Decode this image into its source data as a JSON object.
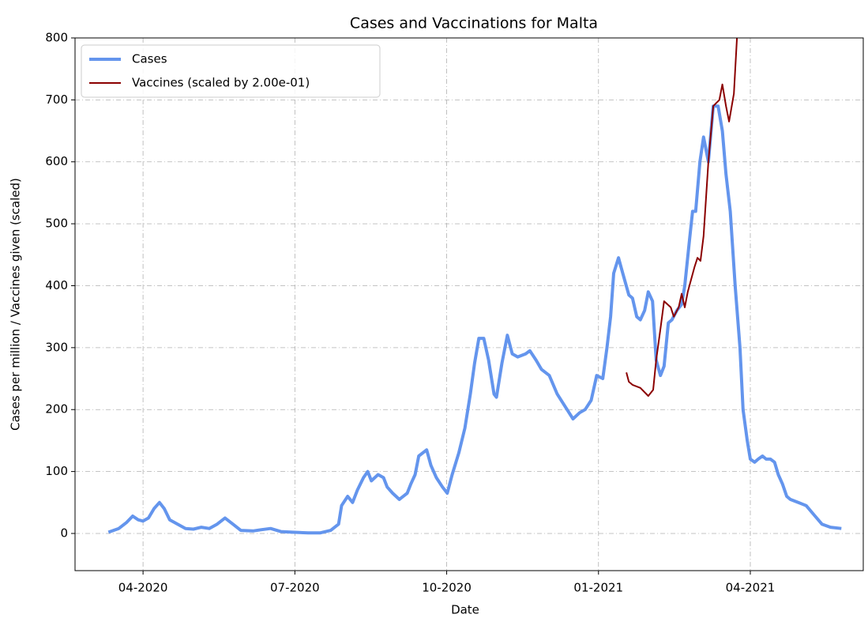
{
  "chart_data": {
    "type": "line",
    "title": "Cases and Vaccinations for Malta",
    "xlabel": "Date",
    "ylabel": "Cases per million / Vaccines given (scaled)",
    "xlim": [
      2020.138,
      2021.436
    ],
    "ylim": [
      -60,
      800
    ],
    "xticks": [
      {
        "value": 2020.25,
        "label": "04-2020"
      },
      {
        "value": 2020.5,
        "label": "07-2020"
      },
      {
        "value": 2020.75,
        "label": "10-2020"
      },
      {
        "value": 2021.0,
        "label": "01-2021"
      },
      {
        "value": 2021.25,
        "label": "04-2021"
      }
    ],
    "yticks": [
      0,
      100,
      200,
      300,
      400,
      500,
      600,
      700,
      800
    ],
    "grid": true,
    "legend": "upper left",
    "series": [
      {
        "name": "Cases",
        "color": "#6495ed",
        "width": 4,
        "x": [
          2020.193,
          2020.21,
          2020.223,
          2020.233,
          2020.242,
          2020.25,
          2020.259,
          2020.268,
          2020.277,
          2020.285,
          2020.294,
          2020.307,
          2020.32,
          2020.333,
          2020.346,
          2020.359,
          2020.372,
          2020.385,
          2020.398,
          2020.411,
          2020.431,
          2020.444,
          2020.46,
          2020.477,
          2020.496,
          2020.522,
          2020.542,
          2020.559,
          2020.572,
          2020.577,
          2020.587,
          2020.595,
          2020.603,
          2020.613,
          2020.62,
          2020.626,
          2020.637,
          2020.646,
          2020.652,
          2020.661,
          2020.672,
          2020.685,
          2020.691,
          2020.698,
          2020.704,
          2020.717,
          2020.724,
          2020.733,
          2020.743,
          2020.751,
          2020.759,
          2020.77,
          2020.78,
          2020.789,
          2020.796,
          2020.803,
          2020.811,
          2020.819,
          2020.828,
          2020.832,
          2020.841,
          2020.85,
          2020.858,
          2020.867,
          2020.88,
          2020.887,
          2020.897,
          2020.906,
          2020.919,
          2020.932,
          2020.945,
          2020.958,
          2020.969,
          2020.978,
          2020.988,
          2020.997,
          2021.007,
          2021.014,
          2021.02,
          2021.025,
          2021.033,
          2021.04,
          2021.05,
          2021.056,
          2021.063,
          2021.069,
          2021.076,
          2021.082,
          2021.089,
          2021.095,
          2021.102,
          2021.108,
          2021.115,
          2021.121,
          2021.129,
          2021.137,
          2021.142,
          2021.15,
          2021.155,
          2021.16,
          2021.167,
          2021.173,
          2021.181,
          2021.189,
          2021.197,
          2021.204,
          2021.21,
          2021.217,
          2021.225,
          2021.233,
          2021.238,
          2021.245,
          2021.25,
          2021.257,
          2021.263,
          2021.27,
          2021.276,
          2021.283,
          2021.29,
          2021.296,
          2021.303,
          2021.31,
          2021.316,
          2021.329,
          2021.342,
          2021.355,
          2021.368,
          2021.382,
          2021.4
        ],
        "values": [
          2,
          8,
          18,
          28,
          22,
          20,
          25,
          40,
          50,
          40,
          22,
          15,
          8,
          7,
          10,
          8,
          15,
          25,
          15,
          5,
          4,
          6,
          8,
          3,
          2,
          1,
          1,
          5,
          15,
          45,
          60,
          50,
          70,
          90,
          100,
          85,
          95,
          90,
          75,
          65,
          55,
          65,
          80,
          95,
          125,
          135,
          110,
          90,
          75,
          65,
          95,
          130,
          170,
          225,
          275,
          315,
          315,
          280,
          225,
          220,
          275,
          320,
          290,
          285,
          290,
          295,
          280,
          265,
          255,
          225,
          205,
          185,
          195,
          200,
          215,
          255,
          250,
          300,
          350,
          420,
          445,
          420,
          385,
          380,
          350,
          345,
          360,
          390,
          375,
          280,
          255,
          270,
          340,
          345,
          360,
          370,
          400,
          475,
          520,
          520,
          600,
          640,
          600,
          690,
          690,
          650,
          580,
          520,
          400,
          300,
          200,
          150,
          120,
          115,
          120,
          125,
          120,
          120,
          115,
          95,
          80,
          60,
          55,
          50,
          45,
          30,
          15,
          10,
          8
        ]
      },
      {
        "name": "Vaccines (scaled by 2.00e-01)",
        "color": "#8b0000",
        "width": 2,
        "x": [
          2021.046,
          2021.05,
          2021.056,
          2021.069,
          2021.082,
          2021.09,
          2021.095,
          2021.102,
          2021.108,
          2021.119,
          2021.124,
          2021.132,
          2021.137,
          2021.142,
          2021.147,
          2021.158,
          2021.163,
          2021.168,
          2021.173,
          2021.181,
          2021.189,
          2021.199,
          2021.204,
          2021.21,
          2021.215,
          2021.223,
          2021.228,
          2021.233
        ],
        "values": [
          260,
          245,
          240,
          235,
          222,
          232,
          280,
          330,
          375,
          365,
          350,
          365,
          387,
          365,
          390,
          430,
          445,
          440,
          480,
          600,
          690,
          700,
          725,
          690,
          665,
          710,
          800,
          860
        ]
      }
    ]
  }
}
